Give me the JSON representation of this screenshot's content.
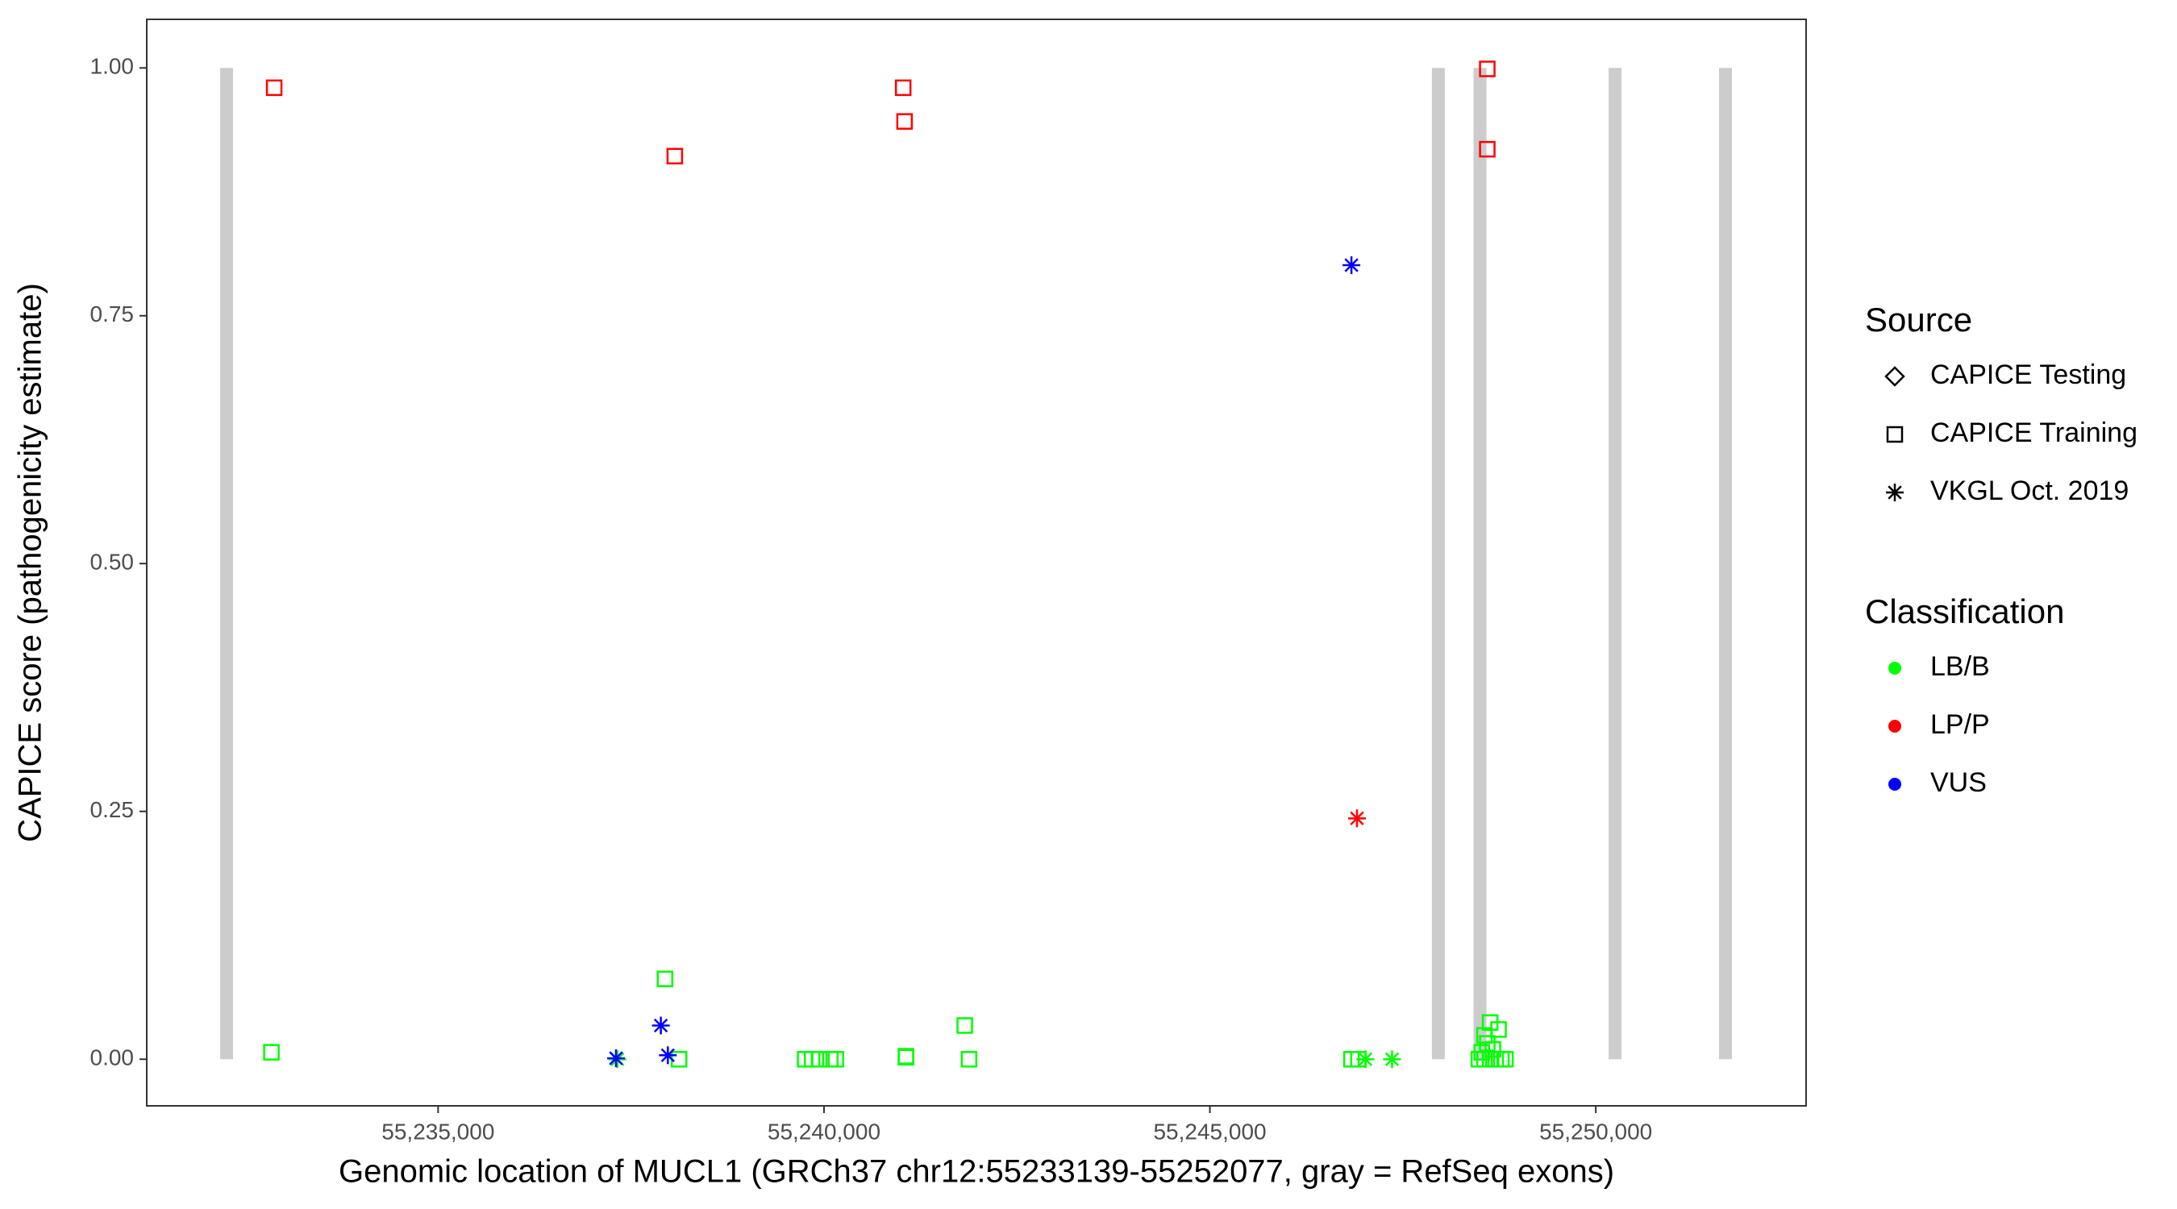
{
  "chart_data": {
    "type": "scatter",
    "x_label": "Genomic location of MUCL1 (GRCh37 chr12:55233139-55252077, gray = RefSeq exons)",
    "y_label": "CAPICE score (pathogenicity estimate)",
    "xlim": [
      55231225,
      55252725
    ],
    "ylim": [
      -0.047,
      1.049
    ],
    "xticks": [
      {
        "value": 55235000,
        "label": "55,235,000"
      },
      {
        "value": 55240000,
        "label": "55,240,000"
      },
      {
        "value": 55245000,
        "label": "55,245,000"
      },
      {
        "value": 55250000,
        "label": "55,250,000"
      }
    ],
    "yticks": [
      {
        "value": 0,
        "label": "0.00"
      },
      {
        "value": 0.25,
        "label": "0.25"
      },
      {
        "value": 0.5,
        "label": "0.50"
      },
      {
        "value": 0.75,
        "label": "0.75"
      },
      {
        "value": 1,
        "label": "1.00"
      }
    ],
    "exons": [
      55232260,
      55247960,
      55248500,
      55250250,
      55251680
    ],
    "exon_range": [
      0,
      1
    ],
    "exon_color": "#cccccc",
    "legend": {
      "source": {
        "title": "Source",
        "items": [
          "CAPICE Testing",
          "CAPICE Training",
          "VKGL Oct. 2019"
        ]
      },
      "classification": {
        "title": "Classification",
        "items": [
          "LB/B",
          "LP/P",
          "VUS"
        ],
        "colors": [
          "#00ff00",
          "#ff0000",
          "#0000ff"
        ]
      }
    },
    "series": [
      {
        "source": "CAPICE Training",
        "classification": "LP/P",
        "x": [
          55232876,
          55238067,
          55241026,
          55241044,
          55248594,
          55248594
        ],
        "y": [
          0.98,
          0.911,
          0.98,
          0.946,
          0.999,
          0.918
        ]
      },
      {
        "source": "CAPICE Training",
        "classification": "LB/B",
        "x": [
          55232840,
          55237940,
          55238122,
          55239755,
          55239846,
          55239937,
          55240082,
          55240155,
          55241062,
          55241062,
          55241824,
          55241879,
          55246834,
          55246925,
          55248631,
          55248740,
          55248558,
          55248594,
          55248522,
          55248667,
          55248485,
          55248558,
          55248631,
          55248703,
          55248776,
          55248830
        ],
        "y": [
          0.007,
          0.081,
          0,
          0,
          0,
          0,
          0,
          0,
          0.003,
          0.002,
          0.034,
          0,
          0,
          0,
          0.037,
          0.03,
          0.024,
          0.016,
          0.007,
          0.01,
          0,
          0,
          0,
          0,
          0,
          0
        ]
      },
      {
        "source": "VKGL Oct. 2019",
        "classification": "LB/B",
        "x": [
          55247015,
          55247360,
          55237323
        ],
        "y": [
          0,
          0,
          0
        ]
      },
      {
        "source": "VKGL Oct. 2019",
        "classification": "VUS",
        "x": [
          55246834,
          55237305,
          55237886,
          55237977
        ],
        "y": [
          0.801,
          0.001,
          0.034,
          0.004
        ]
      },
      {
        "source": "VKGL Oct. 2019",
        "classification": "LP/P",
        "x": [
          55246906
        ],
        "y": [
          0.243
        ]
      }
    ]
  }
}
